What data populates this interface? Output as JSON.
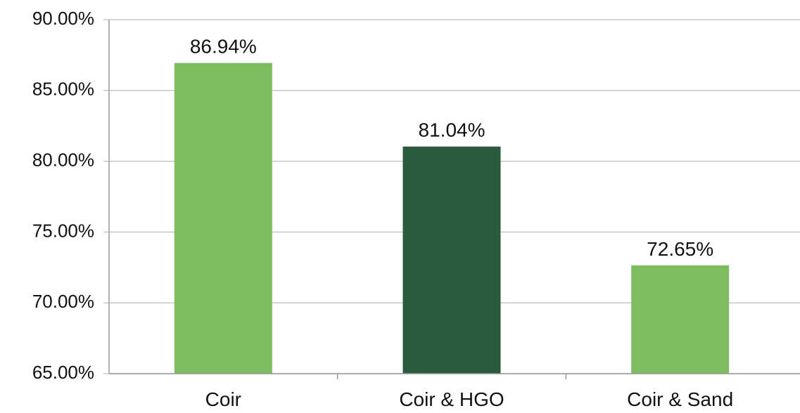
{
  "chart_data": {
    "type": "bar",
    "categories": [
      "Coir",
      "Coir & HGO",
      "Coir & Sand"
    ],
    "values": [
      86.94,
      81.04,
      72.65
    ],
    "data_labels": [
      "86.94%",
      "81.04%",
      "72.65%"
    ],
    "bar_colors": [
      "#7dbd5f",
      "#2a5b3e",
      "#7dbd5f"
    ],
    "title": "",
    "xlabel": "",
    "ylabel": "",
    "ylim": [
      65,
      90
    ],
    "yticks": [
      65,
      70,
      75,
      80,
      85,
      90
    ],
    "ytick_labels": [
      "65.00%",
      "70.00%",
      "75.00%",
      "80.00%",
      "85.00%",
      "90.00%"
    ],
    "grid": true,
    "legend": "none"
  },
  "colors": {
    "gridline": "#c8c8c8",
    "axis": "#9a9a9a"
  }
}
